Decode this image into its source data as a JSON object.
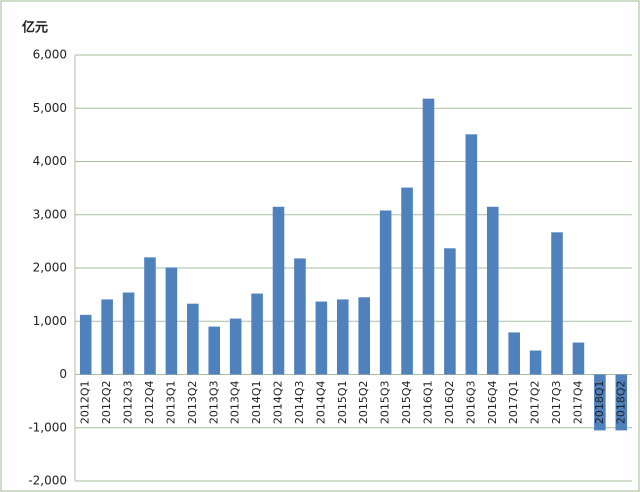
{
  "chart_data": {
    "type": "bar",
    "y_label": "亿元",
    "categories": [
      "2012Q1",
      "2012Q2",
      "2012Q3",
      "2012Q4",
      "2013Q1",
      "2013Q2",
      "2013Q3",
      "2013Q4",
      "2014Q1",
      "2014Q2",
      "2014Q3",
      "2014Q4",
      "2015Q1",
      "2015Q2",
      "2015Q3",
      "2015Q4",
      "2016Q1",
      "2016Q2",
      "2016Q3",
      "2016Q4",
      "2017Q1",
      "2017Q2",
      "2017Q3",
      "2017Q4",
      "2018Q1",
      "2018Q2"
    ],
    "values": [
      1120,
      1410,
      1540,
      2200,
      2010,
      1330,
      900,
      1050,
      1520,
      3150,
      2180,
      1370,
      1410,
      1450,
      3080,
      3510,
      5180,
      2370,
      4510,
      3150,
      790,
      450,
      2670,
      600,
      -1050,
      -1050
    ],
    "color": "#4f81bd",
    "ylim": [
      -2000,
      6000
    ],
    "yticks": [
      {
        "value": -2000,
        "label": "-2,000"
      },
      {
        "value": -1000,
        "label": "-1,000"
      },
      0,
      {
        "value": 1000,
        "label": "1,000"
      },
      {
        "value": 2000,
        "label": "2,000"
      },
      {
        "value": 3000,
        "label": "3,000"
      },
      {
        "value": 4000,
        "label": "4,000"
      },
      {
        "value": 5000,
        "label": "5,000"
      },
      {
        "value": 6000,
        "label": "6,000"
      }
    ],
    "grid": true
  }
}
